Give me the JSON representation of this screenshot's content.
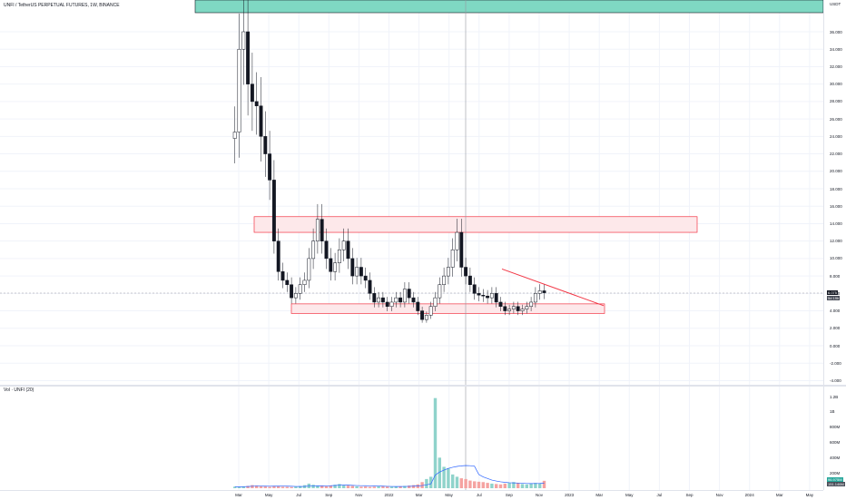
{
  "header": {
    "symbol_line": "UNFI / TetherUS PERPETUAL FUTURES, 1W, BINANCE"
  },
  "volume_pane": {
    "label": "Vol · UNFI (20)",
    "ticks": [
      "1.2B",
      "1B",
      "800M",
      "600M",
      "400M",
      "200M"
    ],
    "current_value": "96.975M",
    "current_ma": "151.146M"
  },
  "price_axis": {
    "currency": "USDT",
    "ticks": [
      "36.000",
      "34.000",
      "32.000",
      "30.000",
      "28.000",
      "26.000",
      "24.000",
      "22.000",
      "20.000",
      "18.000",
      "16.000",
      "14.000",
      "12.000",
      "10.000",
      "8.000",
      "6.000",
      "4.000",
      "2.000",
      "0.000",
      "-2.000",
      "-4.000"
    ],
    "last_price": "6.075",
    "countdown": "5d 19h"
  },
  "time_axis": {
    "labels": [
      "Mar",
      "May",
      "Jul",
      "Sep",
      "Nov",
      "2022",
      "Mar",
      "May",
      "Jul",
      "Sep",
      "Nov",
      "2023",
      "Mar",
      "May",
      "Jul",
      "Sep",
      "Nov",
      "2024",
      "Mar",
      "May"
    ]
  },
  "colors": {
    "up": "#ffffff",
    "down": "#131722",
    "zone_fill": "#fde8ea",
    "zone_border": "#f23645",
    "top_zone_fill": "#7fd8c3",
    "trendline": "#f23645",
    "volume_up": "#26a69a",
    "volume_down": "#ef5350",
    "volume_ma": "#2962ff"
  },
  "chart_data": {
    "type": "candlestick",
    "title": "UNFI / TetherUS PERPETUAL FUTURES, 1W, BINANCE",
    "timeframe": "1W",
    "ylim": [
      -4,
      38
    ],
    "grid": true,
    "closes": [
      24.5,
      34,
      36,
      30,
      28,
      27.5,
      24,
      22,
      19,
      12,
      8.5,
      7.5,
      7,
      5.5,
      6,
      7,
      7.5,
      10,
      12,
      14.5,
      12,
      10,
      8.5,
      9.5,
      11,
      12,
      10,
      8,
      9,
      8,
      7.5,
      6,
      5,
      5.5,
      5,
      4.5,
      5,
      5.5,
      5,
      6.5,
      5.5,
      5,
      4,
      3,
      3.5,
      4.5,
      5.5,
      7,
      8,
      9,
      11,
      13,
      9,
      8,
      7,
      6,
      5.8,
      5.7,
      5.5,
      6,
      5,
      4.5,
      4,
      4.2,
      4.5,
      4,
      4.2,
      4.5,
      5,
      6,
      6.3,
      6.075
    ],
    "zones": [
      {
        "name": "resistance",
        "low": 13,
        "high": 14.8
      },
      {
        "name": "support",
        "low": 3.7,
        "high": 4.8
      }
    ],
    "volume_millions": [
      20,
      15,
      25,
      30,
      40,
      35,
      28,
      22,
      18,
      30,
      25,
      20,
      18,
      15,
      22,
      28,
      40,
      60,
      45,
      35,
      30,
      25,
      30,
      45,
      55,
      40,
      35,
      30,
      25,
      20,
      22,
      18,
      20,
      25,
      30,
      22,
      18,
      20,
      25,
      30,
      35,
      40,
      50,
      80,
      120,
      150,
      1180,
      400,
      280,
      260,
      180,
      150,
      130,
      120,
      100,
      90,
      85,
      80,
      70,
      60,
      55,
      50,
      60,
      70,
      80,
      65,
      55,
      50,
      60,
      70,
      65,
      96.975
    ]
  }
}
